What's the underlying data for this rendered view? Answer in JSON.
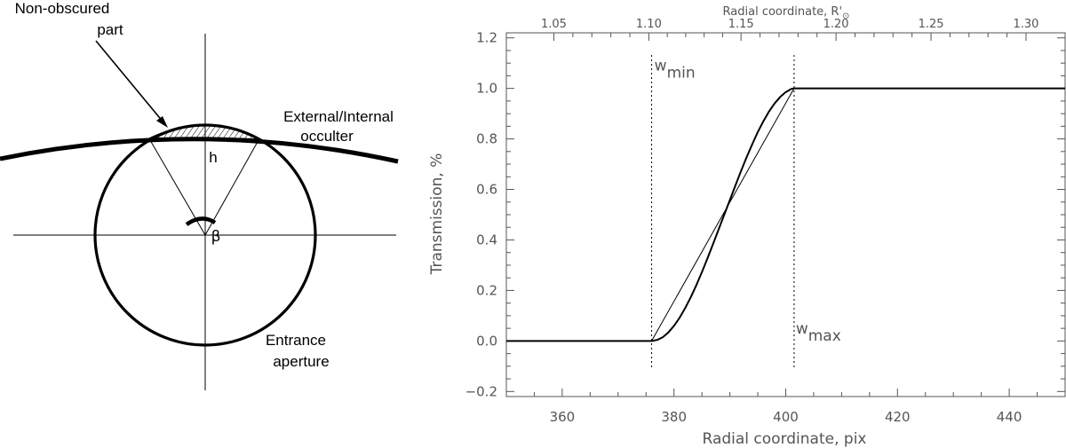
{
  "diagram": {
    "labels": {
      "non_obscured_line1": "Non-obscured",
      "non_obscured_line2": "part",
      "occulter_line1": "External/Internal",
      "occulter_line2": "occulter",
      "height": "h",
      "angle": "β",
      "aperture_line1": "Entrance",
      "aperture_line2": "aperture"
    }
  },
  "chart_data": {
    "type": "line",
    "xlabel": "Radial coordinate, pix",
    "ylabel": "Transmission, %",
    "top_xlabel": "Radial coordinate, R'",
    "top_xlabel_symbol": "⊙",
    "xlim": [
      350,
      450
    ],
    "ylim": [
      -0.22,
      1.22
    ],
    "x_ticks": [
      360,
      380,
      400,
      420,
      440
    ],
    "y_ticks": [
      -0.2,
      0.0,
      0.2,
      0.4,
      0.6,
      0.8,
      1.0,
      1.2
    ],
    "y_tick_labels": [
      "−0.2",
      "0.0",
      "0.2",
      "0.4",
      "0.6",
      "0.8",
      "1.0",
      "1.2"
    ],
    "top_ticks": [
      {
        "label": "1.05",
        "x": 358.5
      },
      {
        "label": "1.10",
        "x": 375.5
      },
      {
        "label": "1.15",
        "x": 392.0
      },
      {
        "label": "1.20",
        "x": 409.0
      },
      {
        "label": "1.25",
        "x": 426.0
      },
      {
        "label": "1.30",
        "x": 443.0
      }
    ],
    "w_min": 376,
    "w_max": 401.5,
    "annotations": [
      {
        "text": "w",
        "sub": "min",
        "x": 376.5,
        "y": 1.07
      },
      {
        "text": "w",
        "sub": "max",
        "x": 401.8,
        "y": 0.03
      }
    ],
    "series": [
      {
        "style": "thick-smooth",
        "x": [
          350,
          376,
          377,
          378,
          379,
          380,
          381,
          382,
          383,
          384,
          385,
          386,
          387,
          388,
          389,
          390,
          391,
          392,
          393,
          394,
          395,
          396,
          397,
          398,
          399,
          400,
          401,
          401.5,
          410,
          420,
          430,
          440,
          450
        ],
        "y": [
          0,
          0,
          0.004,
          0.015,
          0.034,
          0.06,
          0.092,
          0.13,
          0.173,
          0.221,
          0.272,
          0.327,
          0.384,
          0.442,
          0.5,
          0.558,
          0.616,
          0.673,
          0.728,
          0.779,
          0.827,
          0.87,
          0.908,
          0.94,
          0.966,
          0.985,
          0.998,
          1.0,
          1.0,
          1.0,
          1.0,
          1.0,
          1.0
        ]
      },
      {
        "style": "thin-linear",
        "x": [
          350,
          376,
          401.5,
          450
        ],
        "y": [
          0,
          0,
          1.0,
          1.0
        ]
      }
    ]
  }
}
